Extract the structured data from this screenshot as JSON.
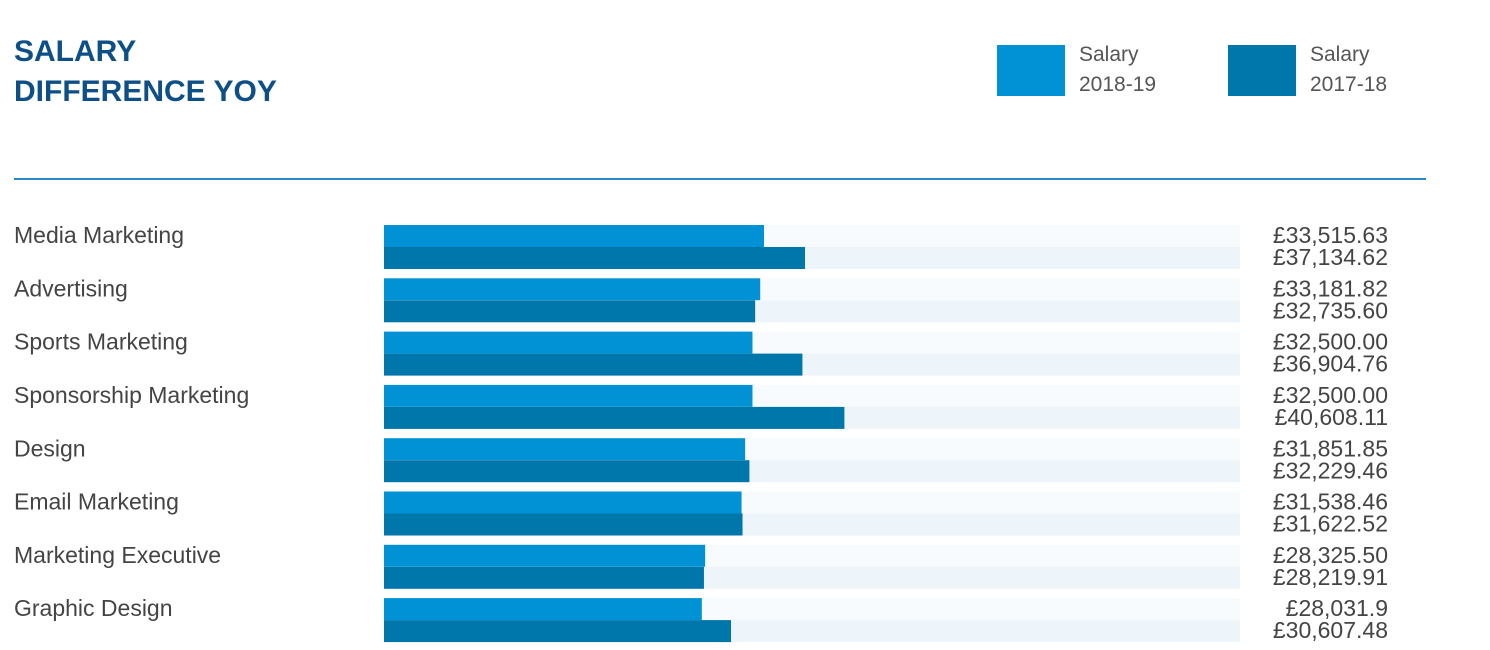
{
  "chart_data": {
    "type": "hbar",
    "title": "SALARY DIFFERENCE YOY",
    "categories": [
      "Media Marketing",
      "Advertising",
      "Sports Marketing",
      "Sponsorship Marketing",
      "Design",
      "Email Marketing",
      "Marketing Executive",
      "Graphic Design"
    ],
    "series": [
      {
        "name": "Salary 2018-19",
        "color": "#0092d4",
        "values": [
          33515.63,
          33181.82,
          32500.0,
          32500.0,
          31851.85,
          31538.46,
          28325.5,
          28031.9
        ],
        "value_labels": [
          "£33,515.63",
          "£33,181.82",
          "£32,500.00",
          "£32,500.00",
          "£31,851.85",
          "£31,538.46",
          "£28,325.50",
          "£28,031.9"
        ]
      },
      {
        "name": "Salary 2017-18",
        "color": "#0077aa",
        "values": [
          37134.62,
          32735.6,
          36904.76,
          40608.11,
          32229.46,
          31622.52,
          28219.91,
          30607.48
        ],
        "value_labels": [
          "£37,134.62",
          "£32,735.60",
          "£36,904.76",
          "£40,608.11",
          "£32,229.46",
          "£31,622.52",
          "£28,219.91",
          "£30,607.48"
        ]
      }
    ],
    "xlim": [
      0,
      75500
    ]
  }
}
